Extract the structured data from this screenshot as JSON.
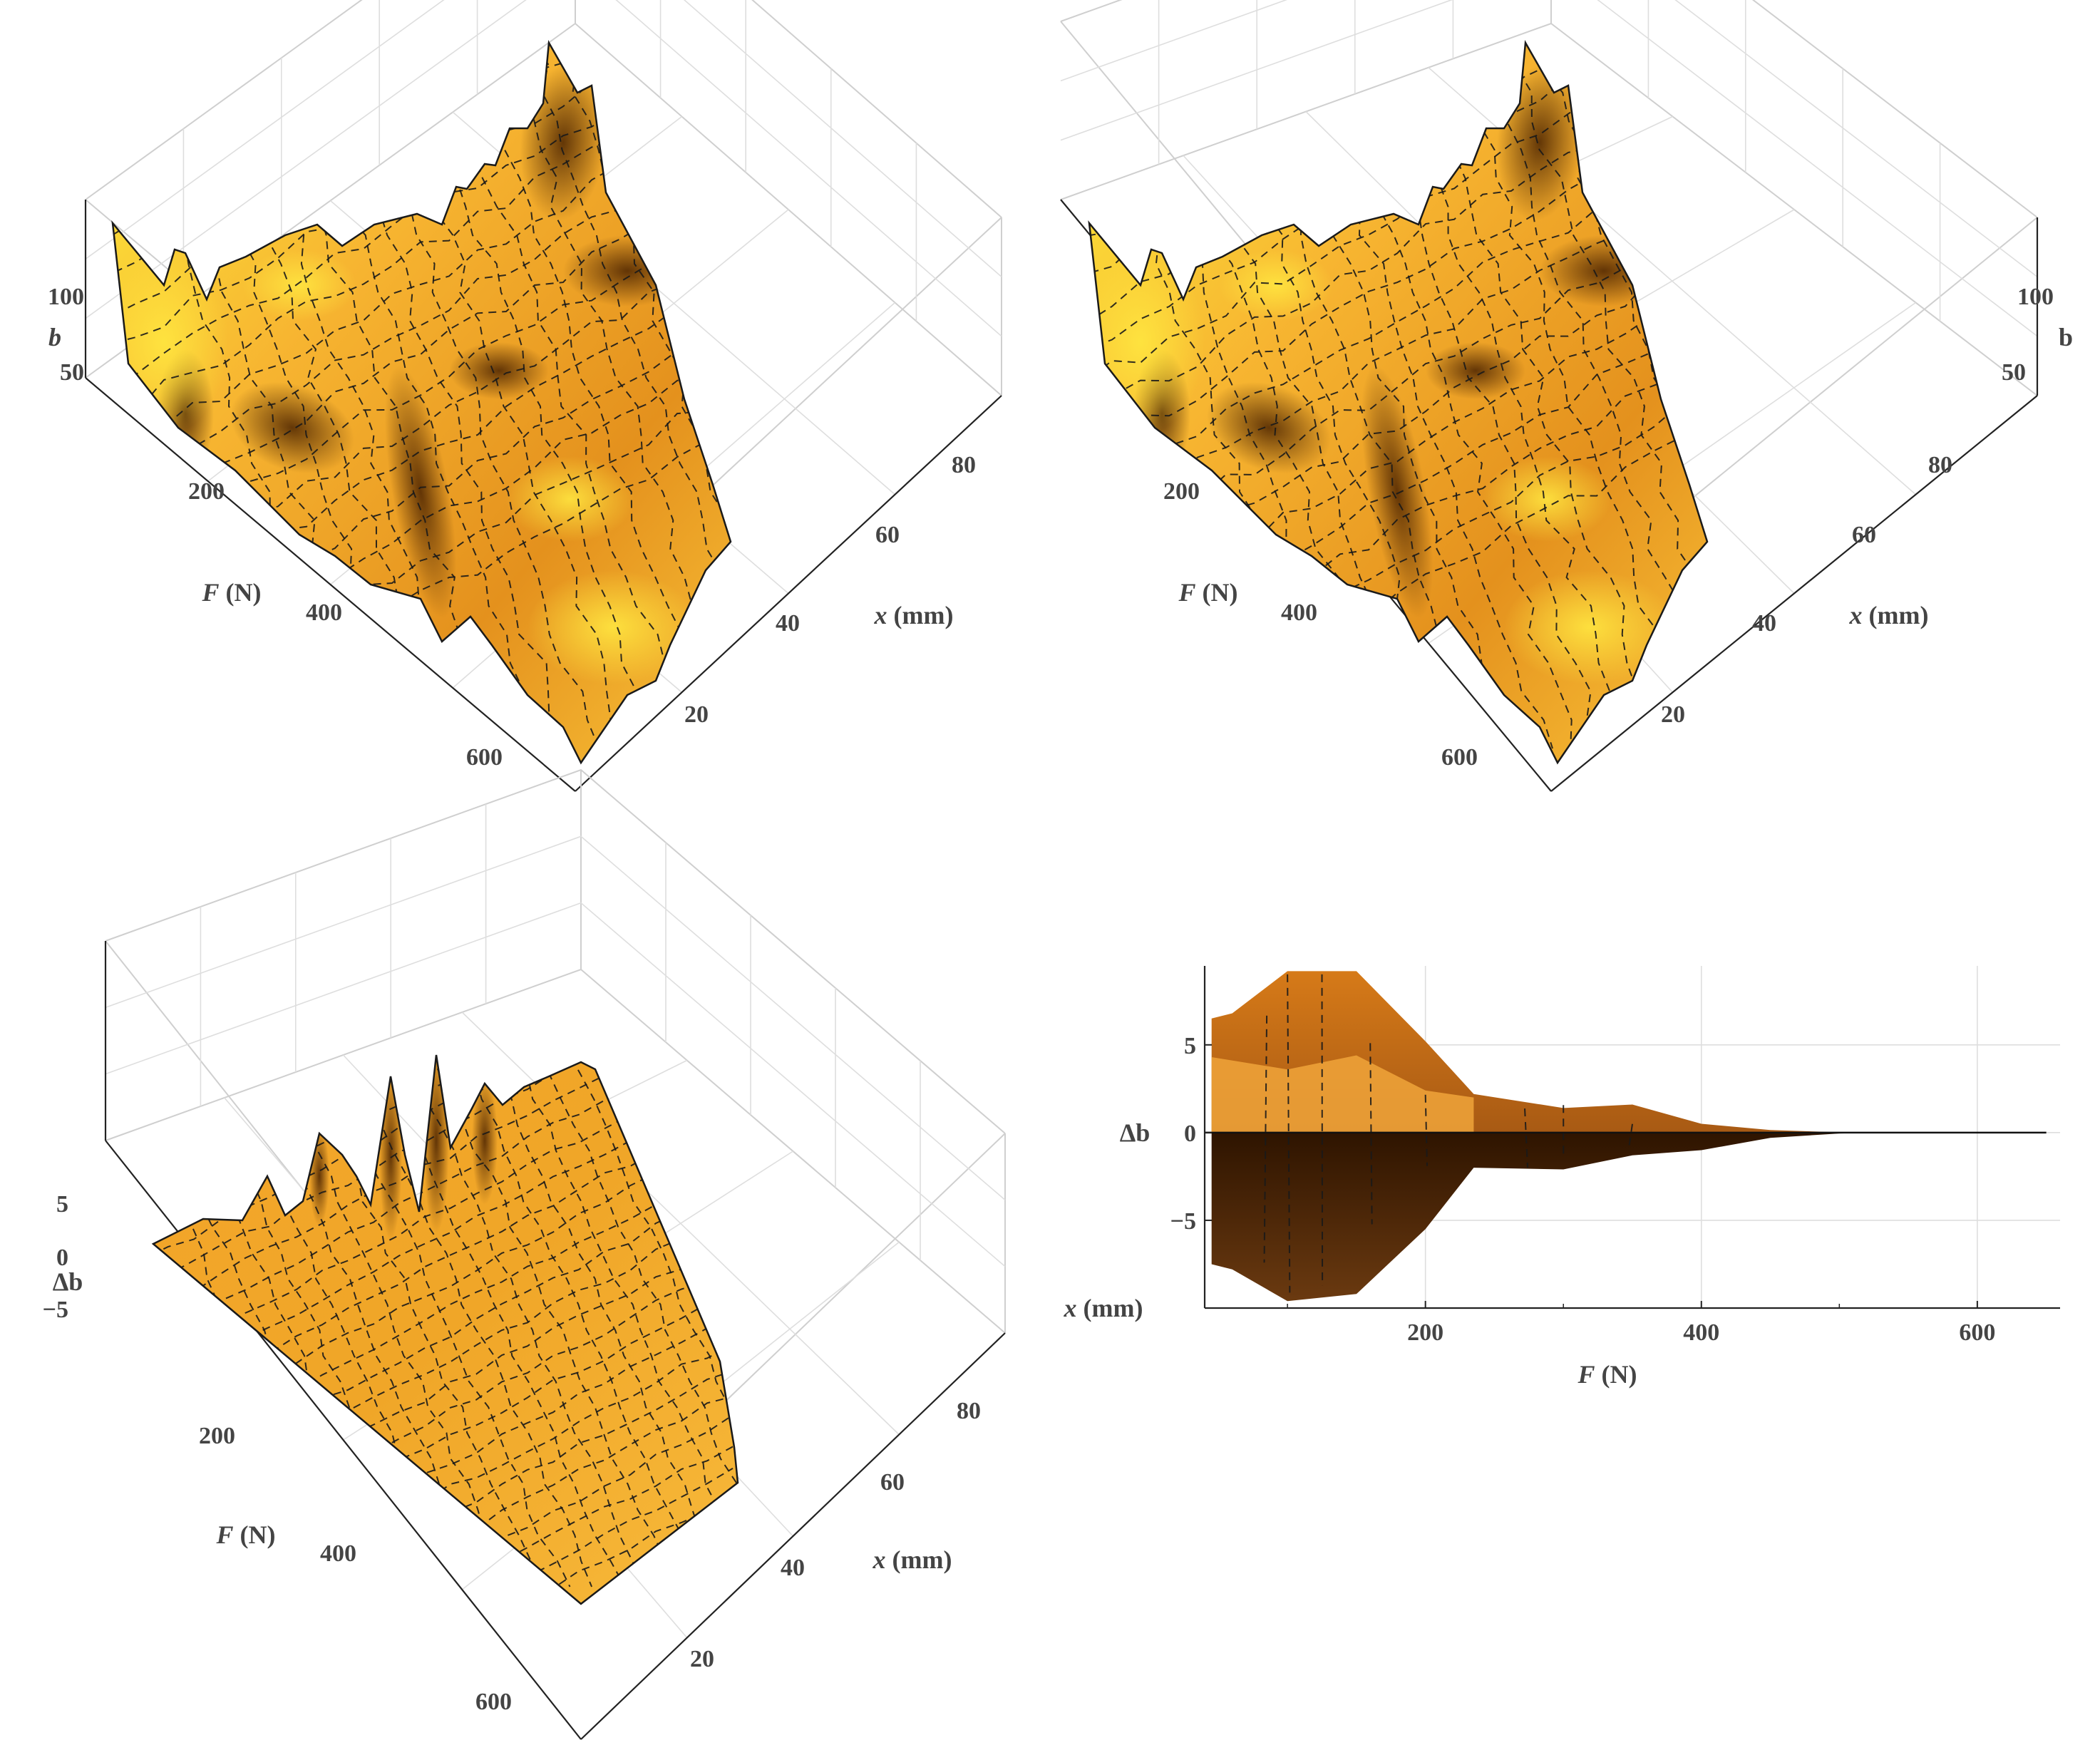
{
  "chart_data": [
    {
      "type": "surface3d",
      "panel": "top-left",
      "zlabel": "b",
      "zlabel_italic": true,
      "xlabel": "x (mm)",
      "ylabel": "F (N)",
      "x_ticks": [
        "20",
        "40",
        "60",
        "80"
      ],
      "y_ticks": [
        "200",
        "400",
        "600"
      ],
      "z_ticks": [
        "100",
        "50"
      ],
      "x_range": [
        0,
        95
      ],
      "y_range": [
        0,
        650
      ],
      "z_range": [
        0,
        140
      ],
      "colormap": [
        "#fdeb3a",
        "#f5a623",
        "#3d1d00"
      ]
    },
    {
      "type": "surface3d",
      "panel": "top-right",
      "zlabel": "b",
      "zlabel_italic": false,
      "xlabel": "x (mm)",
      "ylabel": "F (N)",
      "x_ticks": [
        "20",
        "40",
        "60",
        "80"
      ],
      "y_ticks": [
        "200",
        "400",
        "600"
      ],
      "z_ticks": [
        "100",
        "50"
      ],
      "x_range": [
        0,
        95
      ],
      "y_range": [
        0,
        650
      ],
      "z_range": [
        0,
        140
      ],
      "colormap": [
        "#fdeb3a",
        "#f5a623",
        "#3d1d00"
      ]
    },
    {
      "type": "surface3d",
      "panel": "bottom-left",
      "zlabel": "Δb",
      "xlabel": "x (mm)",
      "ylabel": "F (N)",
      "x_ticks": [
        "20",
        "40",
        "60",
        "80"
      ],
      "y_ticks": [
        "200",
        "400",
        "600"
      ],
      "z_ticks": [
        "5",
        "0",
        "-5"
      ],
      "x_range": [
        0,
        95
      ],
      "y_range": [
        0,
        650
      ],
      "z_range": [
        -8,
        8
      ],
      "colormap": [
        "#f7b53a",
        "#e8901a",
        "#3d1d00"
      ]
    },
    {
      "type": "area",
      "panel": "bottom-right",
      "xlabel": "F (N)",
      "ylabel": "Δb",
      "extra_label": "x (mm)",
      "x_ticks": [
        "200",
        "400",
        "600"
      ],
      "y_ticks": [
        "5",
        "0",
        "-5"
      ],
      "xlim": [
        40,
        660
      ],
      "ylim": [
        -10,
        9.5
      ],
      "grid": true,
      "upper_envelope": {
        "x": [
          45,
          60,
          100,
          150,
          200,
          235,
          300,
          350,
          400,
          450,
          500,
          540,
          650
        ],
        "y": [
          6.5,
          6.8,
          9.2,
          9.2,
          5.2,
          2.2,
          1.4,
          1.6,
          0.5,
          0.15,
          0.02,
          0,
          0
        ]
      },
      "lower_envelope": {
        "x": [
          45,
          60,
          100,
          150,
          200,
          235,
          300,
          350,
          400,
          450,
          500,
          540,
          650
        ],
        "y": [
          -7.5,
          -7.8,
          -9.6,
          -9.2,
          -5.5,
          -2.0,
          -2.1,
          -1.3,
          -1.0,
          -0.3,
          -0.05,
          0,
          0
        ]
      },
      "inner_ridge": {
        "x": [
          45,
          100,
          150,
          200,
          235
        ],
        "y": [
          4.3,
          3.6,
          4.4,
          2.4,
          2.0
        ]
      },
      "colormap": [
        "#f5a623",
        "#8a4a10",
        "#2b1300"
      ]
    }
  ]
}
